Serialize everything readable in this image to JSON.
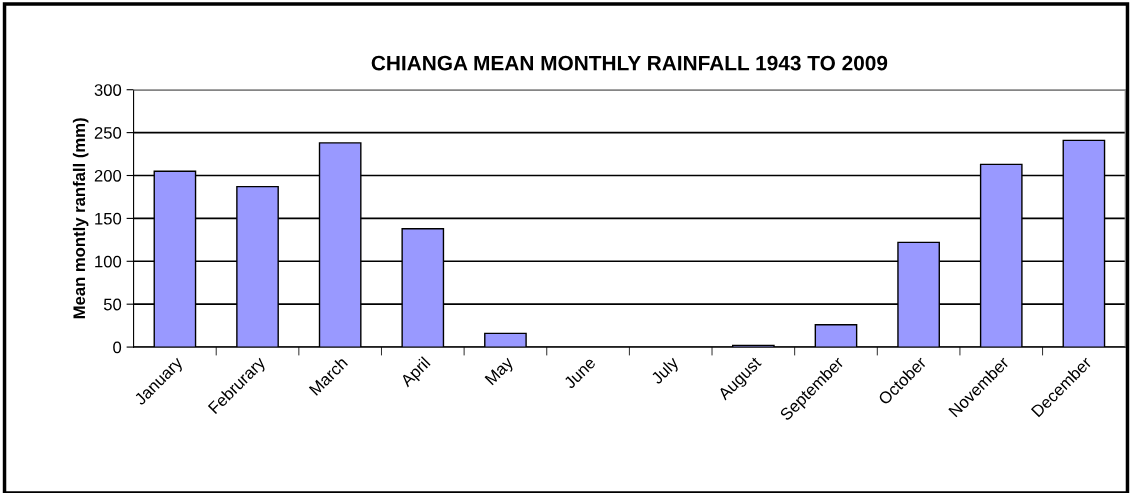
{
  "chart_data": {
    "type": "bar",
    "title": "CHIANGA MEAN MONTHLY RAINFALL 1943 TO 2009",
    "ylabel": "Mean montly ranfall (mm)",
    "categories": [
      "January",
      "Februrary",
      "March",
      "April",
      "May",
      "June",
      "July",
      "August",
      "September",
      "October",
      "November",
      "December"
    ],
    "values": [
      205,
      187,
      238,
      138,
      16,
      0,
      0,
      2,
      26,
      122,
      213,
      241
    ],
    "color": "#9999ff",
    "ylim": [
      0,
      300
    ],
    "yticks": [
      0,
      50,
      100,
      150,
      200,
      250,
      300
    ],
    "grid": "y",
    "legend": false
  }
}
